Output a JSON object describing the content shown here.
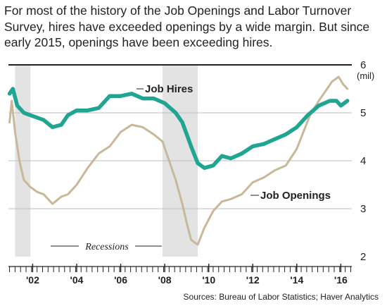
{
  "subtitle": "For most of the history of the Job Openings and Labor Turnover Survey, hires have exceeded openings by a wide margin. But since early 2015, openings have been exceeding hires.",
  "source": "Sources: Bureau of Labor Statistics; Haver Analytics",
  "colors": {
    "hires": "#1fa592",
    "openings": "#c9b79a",
    "recession": "#e3e3e3",
    "grid": "#bdbdbd",
    "axis": "#222222"
  },
  "chart_data": {
    "type": "line",
    "title": "",
    "xlabel": "",
    "ylabel": "",
    "y_unit": "(mil)",
    "ylim": [
      2,
      6
    ],
    "xlim": [
      2000.9,
      2016.5
    ],
    "y_ticks": [
      2,
      3,
      4,
      5,
      6
    ],
    "x_ticks": [
      {
        "value": 2002,
        "label": "'02"
      },
      {
        "value": 2004,
        "label": "'04"
      },
      {
        "value": 2006,
        "label": "'06"
      },
      {
        "value": 2008,
        "label": "'08"
      },
      {
        "value": 2010,
        "label": "'10"
      },
      {
        "value": 2012,
        "label": "'12"
      },
      {
        "value": 2014,
        "label": "'14"
      },
      {
        "value": 2016,
        "label": "'16"
      }
    ],
    "grid": true,
    "recessions_label": "Recessions",
    "recessions": [
      [
        2001.2,
        2001.9
      ],
      [
        2007.9,
        2009.5
      ]
    ],
    "series": [
      {
        "name": "Job Hires",
        "x": [
          2000.95,
          2001.1,
          2001.3,
          2001.6,
          2001.9,
          2002.2,
          2002.5,
          2002.9,
          2003.3,
          2003.6,
          2004.0,
          2004.5,
          2005.0,
          2005.5,
          2006.0,
          2006.5,
          2007.0,
          2007.5,
          2008.0,
          2008.5,
          2008.8,
          2009.0,
          2009.2,
          2009.5,
          2009.8,
          2010.2,
          2010.6,
          2011.0,
          2011.5,
          2012.0,
          2012.5,
          2013.0,
          2013.5,
          2014.0,
          2014.5,
          2015.0,
          2015.5,
          2015.8,
          2016.0,
          2016.3
        ],
        "values": [
          5.4,
          5.5,
          5.15,
          5.0,
          4.95,
          4.9,
          4.85,
          4.7,
          4.75,
          4.95,
          5.05,
          5.05,
          5.1,
          5.35,
          5.35,
          5.4,
          5.3,
          5.3,
          5.2,
          5.0,
          4.8,
          4.55,
          4.3,
          3.95,
          3.85,
          3.9,
          4.1,
          4.05,
          4.15,
          4.3,
          4.35,
          4.45,
          4.55,
          4.7,
          4.95,
          5.15,
          5.25,
          5.25,
          5.15,
          5.25
        ]
      },
      {
        "name": "Job Openings",
        "x": [
          2000.95,
          2001.05,
          2001.2,
          2001.4,
          2001.6,
          2001.9,
          2002.2,
          2002.5,
          2002.9,
          2003.3,
          2003.6,
          2004.0,
          2004.5,
          2005.0,
          2005.5,
          2006.0,
          2006.5,
          2007.0,
          2007.5,
          2007.9,
          2008.2,
          2008.5,
          2008.8,
          2009.0,
          2009.2,
          2009.5,
          2009.8,
          2010.2,
          2010.6,
          2011.0,
          2011.5,
          2012.0,
          2012.5,
          2013.0,
          2013.5,
          2014.0,
          2014.3,
          2014.6,
          2015.0,
          2015.3,
          2015.6,
          2015.9,
          2016.1,
          2016.3
        ],
        "values": [
          4.8,
          5.25,
          4.6,
          4.0,
          3.6,
          3.45,
          3.35,
          3.3,
          3.1,
          3.25,
          3.3,
          3.5,
          3.85,
          4.15,
          4.3,
          4.6,
          4.75,
          4.7,
          4.55,
          4.4,
          4.0,
          3.6,
          3.1,
          2.7,
          2.35,
          2.25,
          2.6,
          2.95,
          3.15,
          3.2,
          3.3,
          3.55,
          3.65,
          3.8,
          3.9,
          4.25,
          4.6,
          4.95,
          5.25,
          5.45,
          5.65,
          5.75,
          5.6,
          5.5
        ]
      }
    ]
  }
}
